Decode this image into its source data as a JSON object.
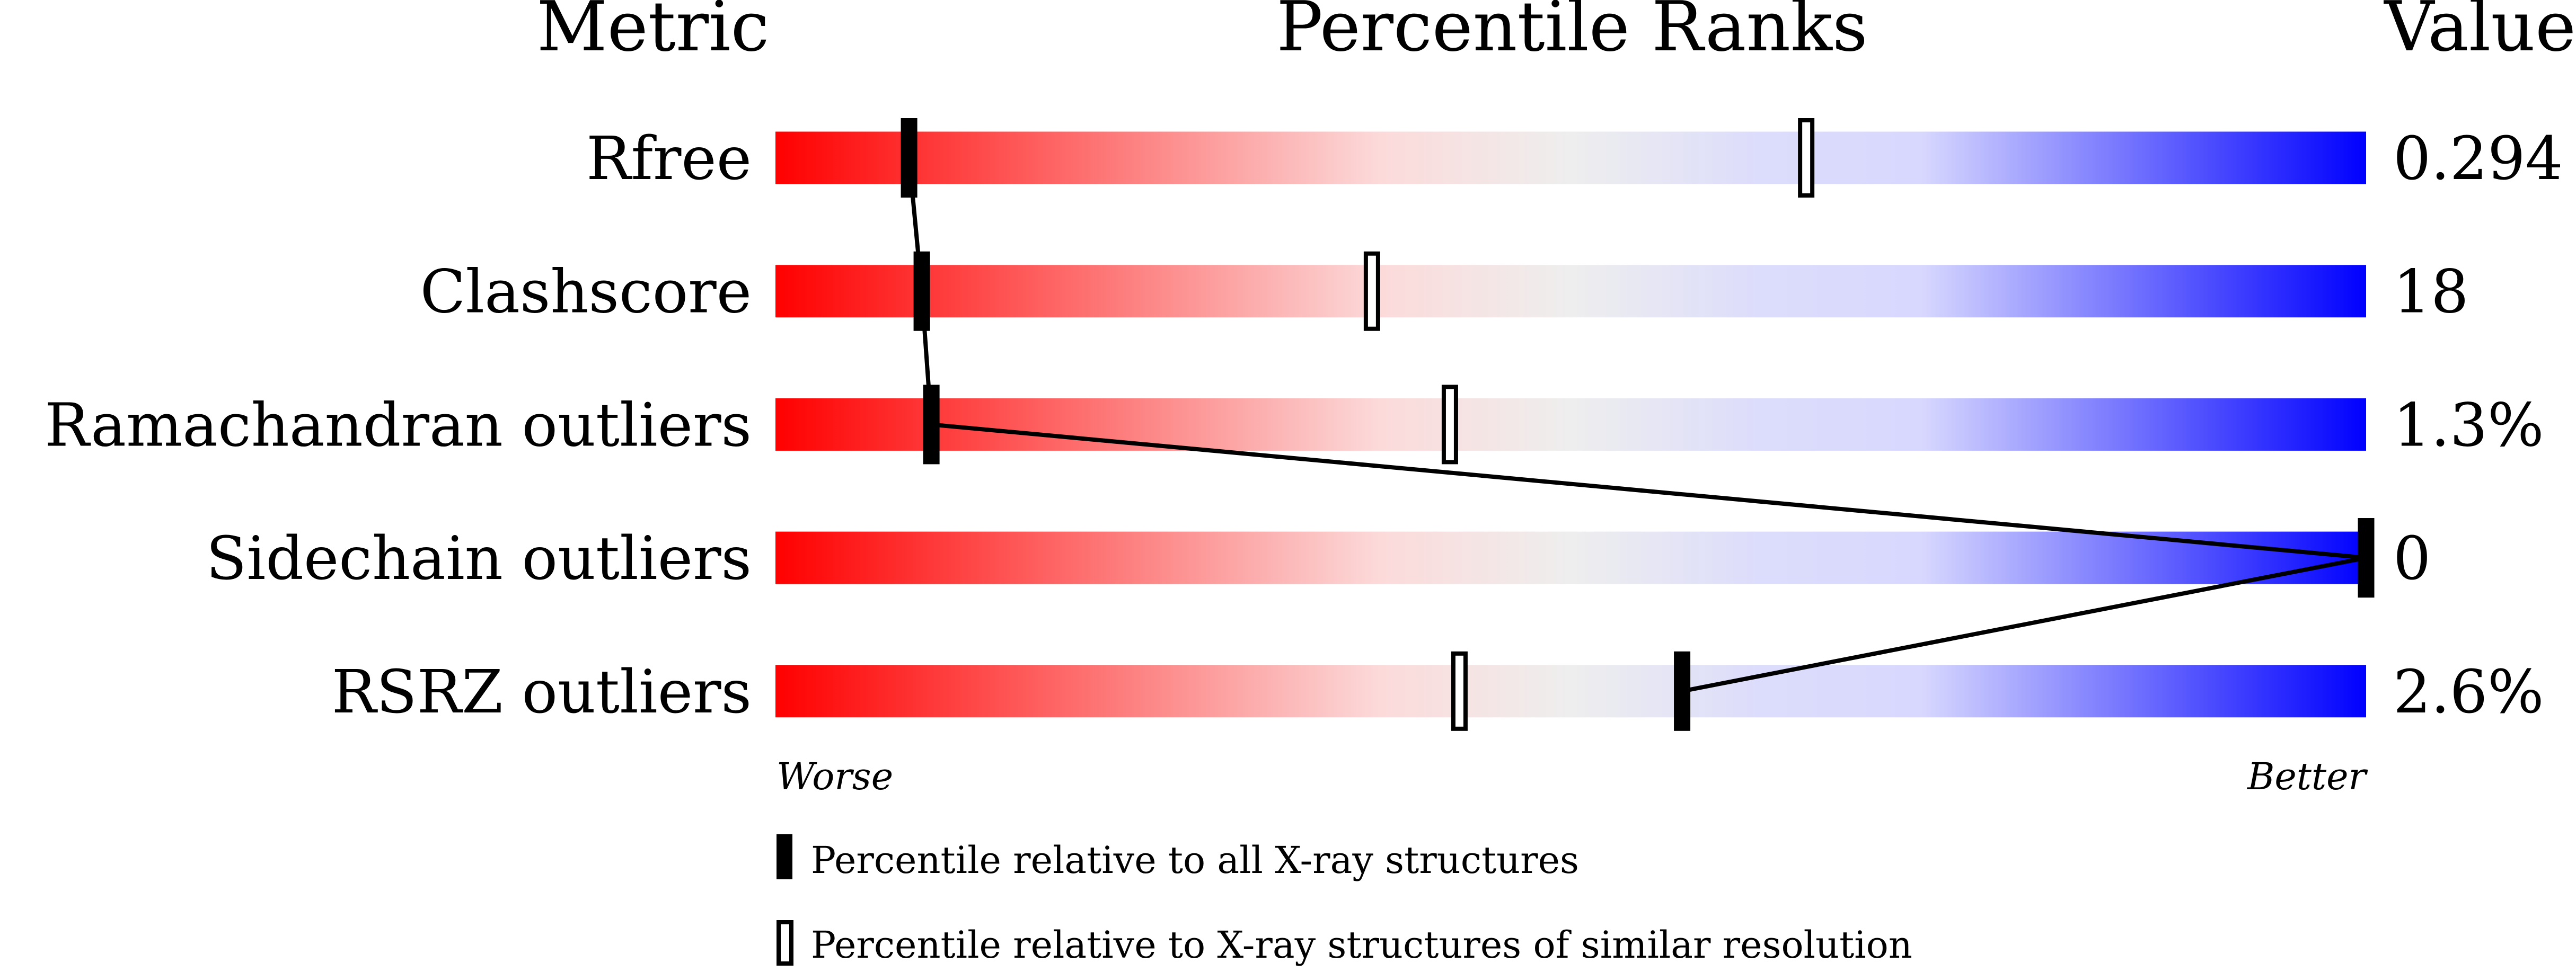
{
  "chart_data": {
    "type": "bar",
    "headers": {
      "metric": "Metric",
      "ranks": "Percentile Ranks",
      "value": "Value"
    },
    "xlim": [
      0,
      100
    ],
    "axis_labels": {
      "left": "Worse",
      "right": "Better"
    },
    "gradient_colors": [
      "#ff0000",
      "#eeeeee",
      "#0000ff"
    ],
    "rows": [
      {
        "metric": "Rfree",
        "value": "0.294",
        "percentile_all": 8.4,
        "percentile_similar": 64.8
      },
      {
        "metric": "Clashscore",
        "value": "18",
        "percentile_all": 9.2,
        "percentile_similar": 37.5
      },
      {
        "metric": "Ramachandran outliers",
        "value": "1.3%",
        "percentile_all": 9.8,
        "percentile_similar": 42.4
      },
      {
        "metric": "Sidechain outliers",
        "value": "0",
        "percentile_all": 100,
        "percentile_similar": 100
      },
      {
        "metric": "RSRZ outliers",
        "value": "2.6%",
        "percentile_all": 57.0,
        "percentile_similar": 43.0
      }
    ],
    "legend": [
      {
        "marker": "filled",
        "label": "Percentile relative to all X-ray structures"
      },
      {
        "marker": "open",
        "label": "Percentile relative to X-ray structures of similar resolution"
      }
    ]
  }
}
